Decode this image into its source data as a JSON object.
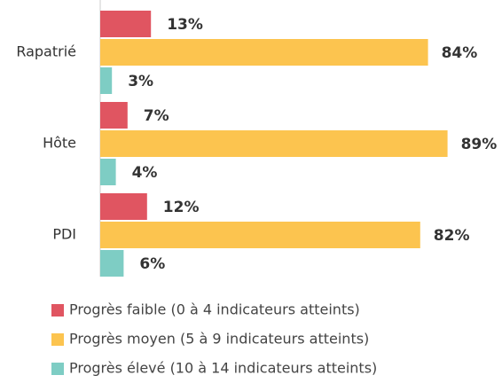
{
  "chart_data": {
    "type": "bar",
    "orientation": "horizontal",
    "categories": [
      "Rapatrié",
      "Hôte",
      "PDI"
    ],
    "series": [
      {
        "name": "Progrès faible (0 à 4 indicateurs atteints)",
        "color": "#e05561",
        "values": [
          13,
          7,
          12
        ],
        "value_labels": [
          "13%",
          "7%",
          "12%"
        ]
      },
      {
        "name": "Progrès moyen (5 à 9 indicateurs atteints)",
        "color": "#fcc44f",
        "values": [
          84,
          89,
          82
        ],
        "value_labels": [
          "84%",
          "89%",
          "82%"
        ]
      },
      {
        "name": "Progrès élevé (10 à 14 indicateurs atteints)",
        "color": "#7ecdc4",
        "values": [
          3,
          4,
          6
        ],
        "value_labels": [
          "3%",
          "4%",
          "6%"
        ]
      }
    ]
  }
}
